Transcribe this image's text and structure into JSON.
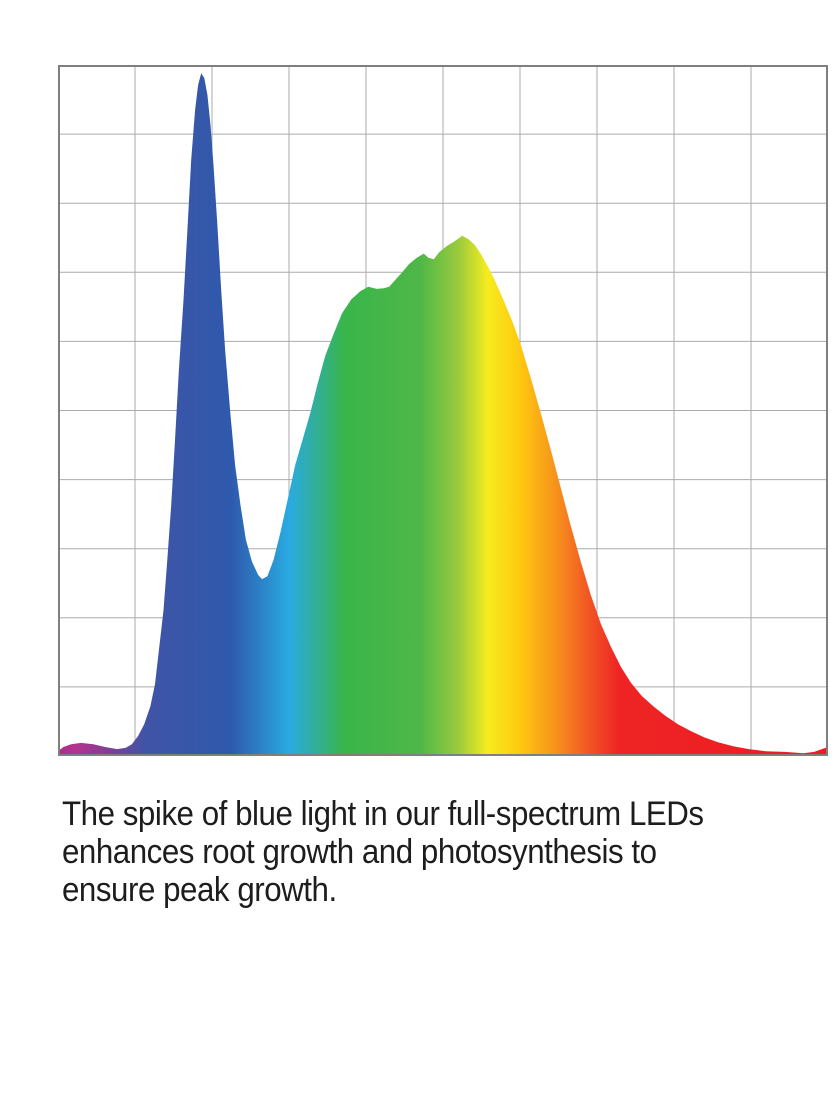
{
  "page": {
    "background": "#FFFFFF"
  },
  "caption": {
    "lines": [
      "The spike of blue light in our full-spectrum LEDs",
      "enhances root growth and photosynthesis to",
      "ensure peak growth."
    ],
    "color": "#1D1D1D"
  },
  "chart_data": {
    "type": "area",
    "title": "",
    "xlabel": "",
    "ylabel": "",
    "description": "Spectral power distribution of a full-spectrum grow-light LED. Sharp narrow blue spike near the left, deep valley, then a broad green-yellow hump falling off through orange into a long red tail. Fill is a left-to-right rainbow gradient (magenta/violet, blue, cyan, green, yellow, orange, red). No axis tick labels are shown.",
    "x_axis": {
      "label": "",
      "tick_labels": [],
      "range_relative": [
        0,
        1
      ]
    },
    "y_axis": {
      "label": "",
      "tick_labels": [],
      "range_relative": [
        0,
        1
      ]
    },
    "grid": {
      "columns": 10,
      "rows": 10,
      "line_color": "#ABABAB",
      "border_color": "#7F7F7F",
      "background": "#FFFFFF"
    },
    "legend": "none",
    "features": {
      "blue_spike": {
        "x_relative": 0.186,
        "intensity": 0.99
      },
      "valley": {
        "x_relative": 0.265,
        "intensity": 0.26
      },
      "broad_peak": {
        "x_relative": 0.525,
        "intensity": 0.75
      }
    },
    "gradient_direction": "horizontal",
    "gradient_stops": [
      [
        0.0,
        "#A62C90"
      ],
      [
        0.022,
        "#B5338F"
      ],
      [
        0.068,
        "#7C3F98"
      ],
      [
        0.112,
        "#4154A6"
      ],
      [
        0.225,
        "#2E59AC"
      ],
      [
        0.3,
        "#29AAE1"
      ],
      [
        0.372,
        "#39B54A"
      ],
      [
        0.47,
        "#4EB748"
      ],
      [
        0.52,
        "#9ACB3C"
      ],
      [
        0.558,
        "#F7EC1F"
      ],
      [
        0.6,
        "#FDC90E"
      ],
      [
        0.645,
        "#F7941D"
      ],
      [
        0.688,
        "#F25724"
      ],
      [
        0.728,
        "#EE2424"
      ],
      [
        1.0,
        "#EC1C24"
      ]
    ],
    "curve_points": [
      [
        0.0,
        0.007
      ],
      [
        0.007,
        0.013
      ],
      [
        0.017,
        0.017
      ],
      [
        0.03,
        0.019
      ],
      [
        0.046,
        0.017
      ],
      [
        0.061,
        0.013
      ],
      [
        0.077,
        0.01
      ],
      [
        0.088,
        0.012
      ],
      [
        0.096,
        0.017
      ],
      [
        0.104,
        0.029
      ],
      [
        0.112,
        0.046
      ],
      [
        0.12,
        0.072
      ],
      [
        0.126,
        0.104
      ],
      [
        0.131,
        0.153
      ],
      [
        0.137,
        0.211
      ],
      [
        0.142,
        0.284
      ],
      [
        0.147,
        0.363
      ],
      [
        0.152,
        0.457
      ],
      [
        0.157,
        0.559
      ],
      [
        0.163,
        0.66
      ],
      [
        0.168,
        0.761
      ],
      [
        0.173,
        0.863
      ],
      [
        0.178,
        0.935
      ],
      [
        0.182,
        0.971
      ],
      [
        0.186,
        0.988
      ],
      [
        0.19,
        0.981
      ],
      [
        0.194,
        0.957
      ],
      [
        0.198,
        0.913
      ],
      [
        0.202,
        0.855
      ],
      [
        0.207,
        0.768
      ],
      [
        0.212,
        0.674
      ],
      [
        0.217,
        0.588
      ],
      [
        0.224,
        0.493
      ],
      [
        0.23,
        0.421
      ],
      [
        0.237,
        0.363
      ],
      [
        0.244,
        0.313
      ],
      [
        0.252,
        0.281
      ],
      [
        0.26,
        0.262
      ],
      [
        0.265,
        0.256
      ],
      [
        0.272,
        0.26
      ],
      [
        0.28,
        0.284
      ],
      [
        0.289,
        0.324
      ],
      [
        0.298,
        0.37
      ],
      [
        0.308,
        0.421
      ],
      [
        0.319,
        0.463
      ],
      [
        0.328,
        0.498
      ],
      [
        0.337,
        0.538
      ],
      [
        0.347,
        0.579
      ],
      [
        0.358,
        0.611
      ],
      [
        0.369,
        0.641
      ],
      [
        0.381,
        0.661
      ],
      [
        0.393,
        0.673
      ],
      [
        0.403,
        0.679
      ],
      [
        0.414,
        0.676
      ],
      [
        0.423,
        0.677
      ],
      [
        0.43,
        0.679
      ],
      [
        0.438,
        0.689
      ],
      [
        0.447,
        0.7
      ],
      [
        0.456,
        0.712
      ],
      [
        0.466,
        0.721
      ],
      [
        0.475,
        0.727
      ],
      [
        0.481,
        0.721
      ],
      [
        0.488,
        0.719
      ],
      [
        0.495,
        0.729
      ],
      [
        0.505,
        0.738
      ],
      [
        0.515,
        0.745
      ],
      [
        0.525,
        0.753
      ],
      [
        0.533,
        0.748
      ],
      [
        0.541,
        0.74
      ],
      [
        0.549,
        0.727
      ],
      [
        0.558,
        0.709
      ],
      [
        0.567,
        0.689
      ],
      [
        0.577,
        0.664
      ],
      [
        0.589,
        0.632
      ],
      [
        0.601,
        0.595
      ],
      [
        0.614,
        0.547
      ],
      [
        0.627,
        0.496
      ],
      [
        0.64,
        0.443
      ],
      [
        0.653,
        0.388
      ],
      [
        0.666,
        0.333
      ],
      [
        0.679,
        0.281
      ],
      [
        0.692,
        0.233
      ],
      [
        0.705,
        0.191
      ],
      [
        0.718,
        0.158
      ],
      [
        0.731,
        0.129
      ],
      [
        0.744,
        0.106
      ],
      [
        0.758,
        0.087
      ],
      [
        0.774,
        0.071
      ],
      [
        0.789,
        0.058
      ],
      [
        0.805,
        0.046
      ],
      [
        0.822,
        0.036
      ],
      [
        0.839,
        0.027
      ],
      [
        0.857,
        0.02
      ],
      [
        0.877,
        0.014
      ],
      [
        0.897,
        0.01
      ],
      [
        0.919,
        0.007
      ],
      [
        0.944,
        0.006
      ],
      [
        0.968,
        0.004
      ],
      [
        0.982,
        0.006
      ],
      [
        0.992,
        0.01
      ],
      [
        1.0,
        0.013
      ]
    ]
  }
}
